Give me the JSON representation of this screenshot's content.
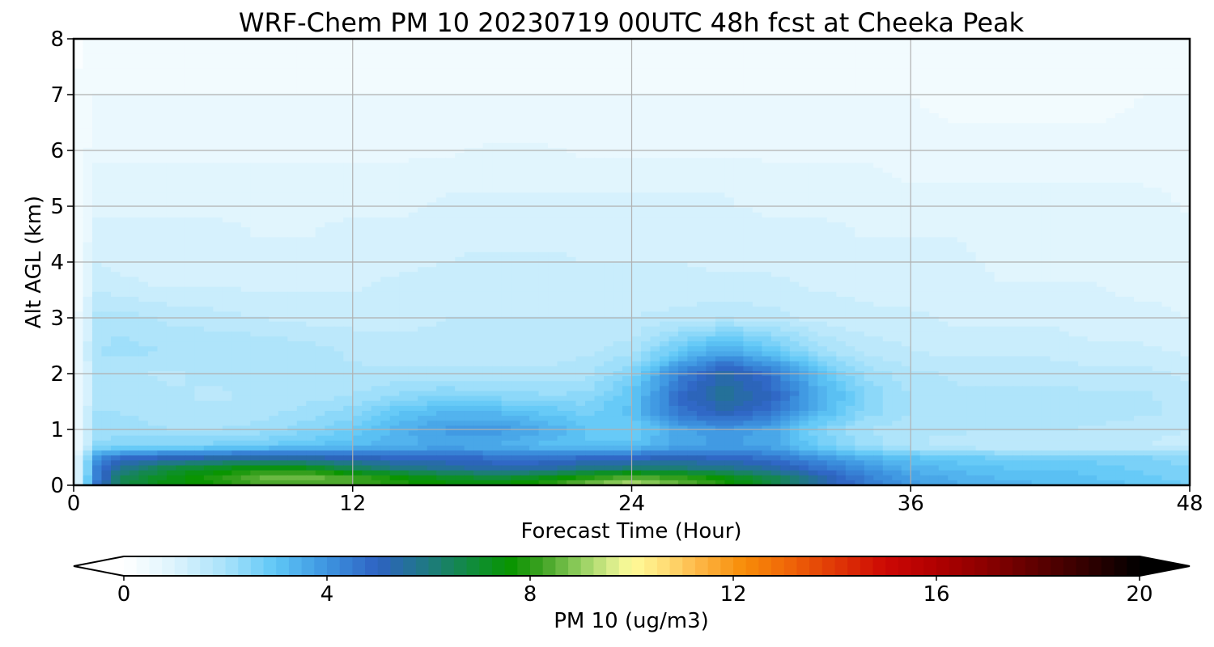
{
  "chart_data": {
    "type": "heatmap",
    "title": "WRF-Chem PM 10  20230719 00UTC 48h fcst at Cheeka Peak",
    "xlabel": "Forecast Time (Hour)",
    "ylabel": "Alt AGL (km)",
    "xlim": [
      0,
      48
    ],
    "ylim": [
      0,
      8
    ],
    "x_ticks": [
      "0",
      "12",
      "24",
      "36",
      "48"
    ],
    "y_ticks": [
      "0",
      "1",
      "2",
      "3",
      "4",
      "5",
      "6",
      "7",
      "8"
    ],
    "grid": true,
    "colorbar": {
      "label": "PM 10  (ug/m3)",
      "range": [
        0,
        20
      ],
      "ticks": [
        "0",
        "4",
        "8",
        "12",
        "16",
        "20"
      ],
      "extend": "both",
      "orientation": "horizontal",
      "placement": "bottom",
      "colors": [
        [
          0,
          "#ffffff"
        ],
        [
          1,
          "#ddf3fd"
        ],
        [
          2,
          "#a8e2fa"
        ],
        [
          3,
          "#5ec6f6"
        ],
        [
          4,
          "#3d94e0"
        ],
        [
          5,
          "#2e62c2"
        ],
        [
          6,
          "#1e7a80"
        ],
        [
          7,
          "#0e8f30"
        ],
        [
          7.6,
          "#089400"
        ],
        [
          8.2,
          "#3aa020"
        ],
        [
          9,
          "#94cf60"
        ],
        [
          9.6,
          "#d8ec8a"
        ],
        [
          10,
          "#fffc9a"
        ],
        [
          10.6,
          "#ffe07a"
        ],
        [
          11.4,
          "#fdb340"
        ],
        [
          12.2,
          "#f78c08"
        ],
        [
          13,
          "#f16a08"
        ],
        [
          14,
          "#e03806"
        ],
        [
          15,
          "#cc0804"
        ],
        [
          16,
          "#b00000"
        ],
        [
          17,
          "#8a0000"
        ],
        [
          18,
          "#5c0000"
        ],
        [
          19,
          "#300000"
        ],
        [
          20,
          "#000000"
        ]
      ]
    },
    "times": [
      0,
      1,
      2,
      4,
      6,
      8,
      10,
      12,
      14,
      16,
      18,
      20,
      22,
      24,
      26,
      28,
      30,
      32,
      34,
      36,
      38,
      40,
      42,
      44,
      46,
      48
    ],
    "altitudes": [
      0,
      0.05,
      0.15,
      0.3,
      0.5,
      0.7,
      1.0,
      1.3,
      1.6,
      2.0,
      2.4,
      3.0,
      3.6,
      4.4,
      5.2,
      6.0,
      7.0,
      8.0
    ],
    "values": [
      [
        0.3,
        4.5,
        6.4,
        7.2,
        7.4,
        7.6,
        7.8,
        7.8,
        7.7,
        7.5,
        7.4,
        7.6,
        8.2,
        8.5,
        8.0,
        7.6,
        6.5,
        5.4,
        4.4,
        3.8,
        3.5,
        3.3,
        3.2,
        3.1,
        2.9,
        2.7
      ],
      [
        0.3,
        4.5,
        6.5,
        7.4,
        7.8,
        8.4,
        8.6,
        8.3,
        7.8,
        7.5,
        7.4,
        7.7,
        8.6,
        9.2,
        8.6,
        7.8,
        6.8,
        5.5,
        4.5,
        3.8,
        3.5,
        3.3,
        3.2,
        3.1,
        2.9,
        2.7
      ],
      [
        0.3,
        4.4,
        6.4,
        7.3,
        7.8,
        8.5,
        8.7,
        8.2,
        7.6,
        7.1,
        6.8,
        7.1,
        7.8,
        8.4,
        8.0,
        7.4,
        6.6,
        5.4,
        4.4,
        3.7,
        3.4,
        3.2,
        3.1,
        3.0,
        2.8,
        2.6
      ],
      [
        0.3,
        4.3,
        5.8,
        6.7,
        7.2,
        7.6,
        7.4,
        6.6,
        6.0,
        5.7,
        5.3,
        5.4,
        5.9,
        6.1,
        6.1,
        5.9,
        5.4,
        4.7,
        4.0,
        3.4,
        3.2,
        3.0,
        3.0,
        2.9,
        2.7,
        2.5
      ],
      [
        0.3,
        3.9,
        4.7,
        5.0,
        5.2,
        5.3,
        5.2,
        5.0,
        4.9,
        4.8,
        4.7,
        4.6,
        4.7,
        4.9,
        5.0,
        4.9,
        4.6,
        4.0,
        3.4,
        3.0,
        2.8,
        2.7,
        2.7,
        2.6,
        2.5,
        2.4
      ],
      [
        0.2,
        2.4,
        2.5,
        2.5,
        2.6,
        2.8,
        3.0,
        3.2,
        3.4,
        3.6,
        3.5,
        3.2,
        3.0,
        3.1,
        3.6,
        3.8,
        3.6,
        2.8,
        2.2,
        1.8,
        1.6,
        1.5,
        1.5,
        1.5,
        1.5,
        1.4
      ],
      [
        0.2,
        2.0,
        2.1,
        2.0,
        2.0,
        2.1,
        2.4,
        2.8,
        3.4,
        3.8,
        3.9,
        3.6,
        3.0,
        2.7,
        3.6,
        4.0,
        3.6,
        2.6,
        2.0,
        1.8,
        1.8,
        1.8,
        1.8,
        1.7,
        1.6,
        1.5
      ],
      [
        0.2,
        2.0,
        2.0,
        1.9,
        1.8,
        1.9,
        2.1,
        2.4,
        3.0,
        3.3,
        3.3,
        3.0,
        2.7,
        3.1,
        4.6,
        5.2,
        4.6,
        3.3,
        2.4,
        2.0,
        1.9,
        1.9,
        1.9,
        1.9,
        1.8,
        1.7
      ],
      [
        0.2,
        1.9,
        1.9,
        1.8,
        1.7,
        1.8,
        1.9,
        2.0,
        2.3,
        2.5,
        2.4,
        2.3,
        2.3,
        3.0,
        4.8,
        5.7,
        5.0,
        3.6,
        2.5,
        2.0,
        1.8,
        1.8,
        1.8,
        1.8,
        1.8,
        1.6
      ],
      [
        0.2,
        1.9,
        1.8,
        1.7,
        1.8,
        1.8,
        1.8,
        1.8,
        1.8,
        1.8,
        1.8,
        1.8,
        1.9,
        2.5,
        4.3,
        5.4,
        4.6,
        3.1,
        2.2,
        1.8,
        1.7,
        1.7,
        1.7,
        1.6,
        1.6,
        1.4
      ],
      [
        0.2,
        2.0,
        2.1,
        2.0,
        2.0,
        2.0,
        1.9,
        1.7,
        1.6,
        1.6,
        1.6,
        1.6,
        1.7,
        1.9,
        2.9,
        3.6,
        3.0,
        2.1,
        1.7,
        1.5,
        1.4,
        1.4,
        1.4,
        1.3,
        1.3,
        1.2
      ],
      [
        0.2,
        1.8,
        1.9,
        1.7,
        1.6,
        1.5,
        1.4,
        1.4,
        1.4,
        1.5,
        1.5,
        1.5,
        1.5,
        1.5,
        1.6,
        1.7,
        1.6,
        1.4,
        1.3,
        1.3,
        1.2,
        1.2,
        1.2,
        1.1,
        1.1,
        1.0
      ],
      [
        0.2,
        1.4,
        1.3,
        1.2,
        1.2,
        1.2,
        1.2,
        1.2,
        1.3,
        1.3,
        1.4,
        1.4,
        1.3,
        1.3,
        1.3,
        1.3,
        1.3,
        1.2,
        1.2,
        1.1,
        1.1,
        1.0,
        1.0,
        1.0,
        0.9,
        0.9
      ],
      [
        0.2,
        1.1,
        1.1,
        1.1,
        1.1,
        1.0,
        1.0,
        1.1,
        1.1,
        1.2,
        1.2,
        1.2,
        1.2,
        1.2,
        1.2,
        1.1,
        1.1,
        1.1,
        1.0,
        1.0,
        1.0,
        0.9,
        0.9,
        0.9,
        0.9,
        0.8
      ],
      [
        0.2,
        0.9,
        0.9,
        0.9,
        0.9,
        0.9,
        0.9,
        0.9,
        0.9,
        1.0,
        1.0,
        1.0,
        1.0,
        1.0,
        1.0,
        1.0,
        0.9,
        0.9,
        0.9,
        0.8,
        0.8,
        0.8,
        0.8,
        0.8,
        0.8,
        0.7
      ],
      [
        0.2,
        0.7,
        0.7,
        0.7,
        0.7,
        0.7,
        0.7,
        0.7,
        0.7,
        0.7,
        0.8,
        0.8,
        0.7,
        0.7,
        0.7,
        0.7,
        0.7,
        0.7,
        0.7,
        0.6,
        0.6,
        0.6,
        0.6,
        0.6,
        0.6,
        0.6
      ],
      [
        0.2,
        0.5,
        0.5,
        0.5,
        0.5,
        0.5,
        0.5,
        0.5,
        0.5,
        0.5,
        0.5,
        0.5,
        0.5,
        0.5,
        0.5,
        0.5,
        0.5,
        0.5,
        0.5,
        0.5,
        0.4,
        0.4,
        0.4,
        0.4,
        0.5,
        0.5
      ],
      [
        0.2,
        0.4,
        0.4,
        0.4,
        0.4,
        0.4,
        0.4,
        0.4,
        0.4,
        0.4,
        0.4,
        0.4,
        0.4,
        0.4,
        0.4,
        0.4,
        0.4,
        0.4,
        0.3,
        0.3,
        0.3,
        0.3,
        0.3,
        0.3,
        0.4,
        0.4
      ]
    ]
  }
}
